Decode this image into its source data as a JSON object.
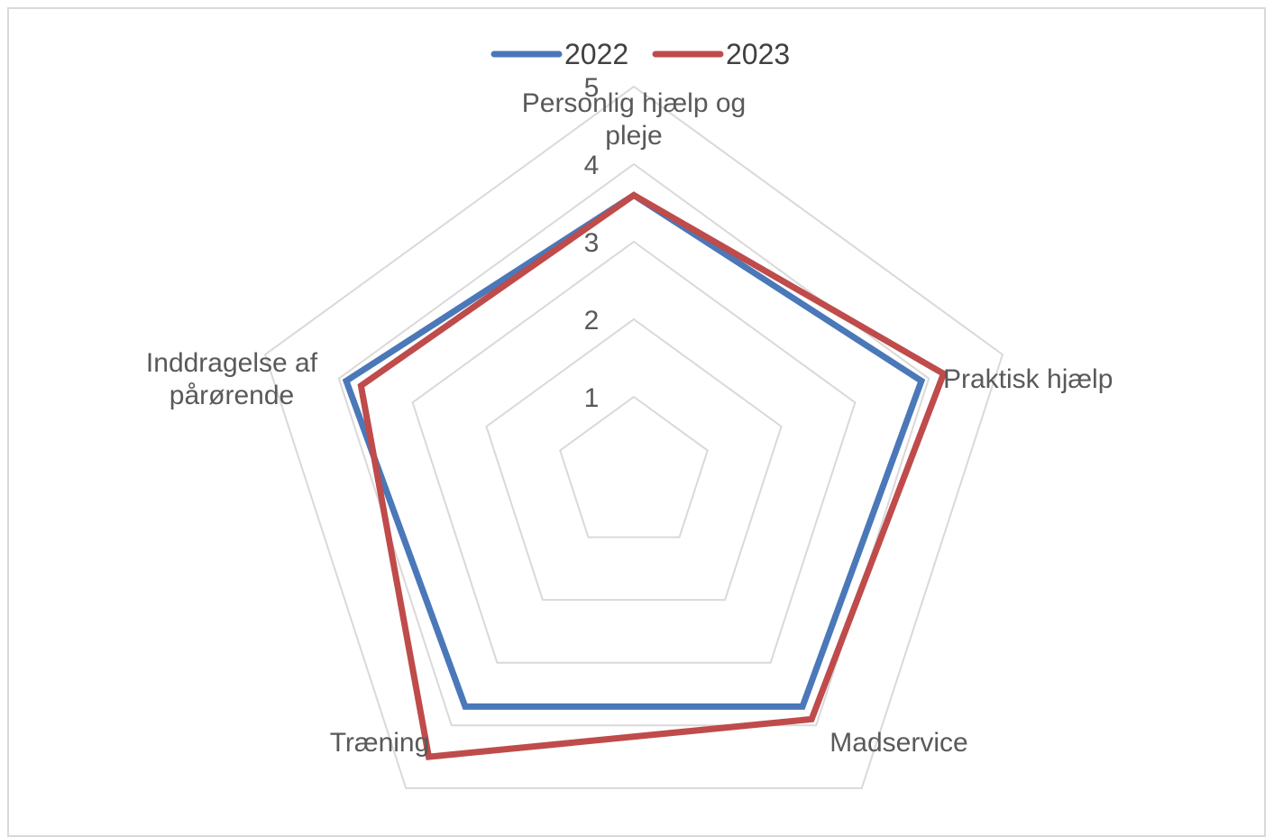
{
  "chart_data": {
    "type": "radar",
    "categories": [
      "Personlig hjælp og pleje",
      "Praktisk hjælp",
      "Madservice",
      "Træning",
      "Inddragelse af pårørende"
    ],
    "category_lines": [
      [
        "Personlig hjælp og",
        "pleje"
      ],
      [
        "Praktisk hjælp"
      ],
      [
        "Madservice"
      ],
      [
        "Træning"
      ],
      [
        "Inddragelse af",
        "pårørende"
      ]
    ],
    "rlim": [
      0,
      5
    ],
    "ticks": [
      "1",
      "2",
      "3",
      "4",
      "5"
    ],
    "tick_values": [
      1,
      2,
      3,
      4,
      5
    ],
    "grid": true,
    "legend_position": "top",
    "series": [
      {
        "name": "2022",
        "color": "#4a78b8",
        "values": [
          3.6,
          3.9,
          3.7,
          3.7,
          3.9
        ]
      },
      {
        "name": "2023",
        "color": "#bf4b4b",
        "values": [
          3.6,
          4.2,
          3.9,
          4.5,
          3.7
        ]
      }
    ]
  }
}
